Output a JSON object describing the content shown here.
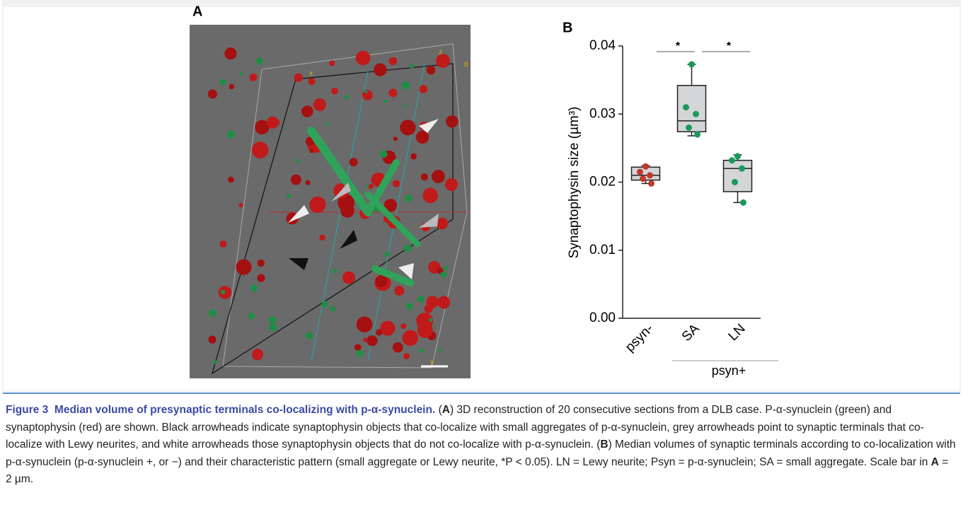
{
  "panel_a": {
    "label": "A",
    "axis_labels": [
      "x",
      "z",
      "0",
      "y"
    ]
  },
  "chart_data": {
    "type": "box",
    "panel_label": "B",
    "y_label": "Synaptophysin size (µm³)",
    "categories": [
      "psyn-",
      "SA",
      "LN"
    ],
    "group_label": "psyn+",
    "significance": [
      "*",
      "*"
    ],
    "stats": [
      {
        "min": 0.0198,
        "q1": 0.0203,
        "median": 0.021,
        "q3": 0.0222,
        "max": 0.0224
      },
      {
        "min": 0.0268,
        "q1": 0.0274,
        "median": 0.029,
        "q3": 0.0342,
        "max": 0.0373
      },
      {
        "min": 0.017,
        "q1": 0.0186,
        "median": 0.022,
        "q3": 0.0232,
        "max": 0.024
      }
    ],
    "points": [
      [
        0.0223,
        0.0215,
        0.021,
        0.0205,
        0.0198
      ],
      [
        0.0373,
        0.031,
        0.03,
        0.028,
        0.027
      ],
      [
        0.0238,
        0.0232,
        0.022,
        0.02,
        0.017
      ]
    ],
    "point_colors": [
      "#c0392b",
      "#1a9a5a",
      "#1a9a5a"
    ],
    "box_color": "#d3d5d7",
    "ylim": [
      0,
      0.04
    ],
    "yticks": [
      {
        "value": 0,
        "label": "0.00"
      },
      0.01,
      0.02,
      0.03,
      0.04
    ]
  },
  "caption": {
    "figure": "Figure 3",
    "title": "Median volume of presynaptic terminals co-localizing with p-α-synuclein.",
    "parts": [
      "(",
      "A",
      ") 3D reconstruction of 20 consecutive sections from a DLB case. P-α-synuclein (green) and synaptophysin (red) are shown. Black arrowheads indicate synaptophysin objects that co-localize with small aggregates of p-α-synuclein, grey arrowheads point to synaptic terminals that co-localize with Lewy neurites, and white arrowheads those synaptophysin objects that do not co-localize with p-α-synuclein. (",
      "B",
      ") Median volumes of synaptic terminals according to co-localization with p-α-synuclein (p-α-synuclein +, or −) and their characteristic pattern (small aggregate or Lewy neurite, *P < 0.05). LN = Lewy neurite; Psyn = p-α-synuclein; SA = small aggregate. Scale bar in ",
      "A",
      " = 2 µm."
    ]
  }
}
